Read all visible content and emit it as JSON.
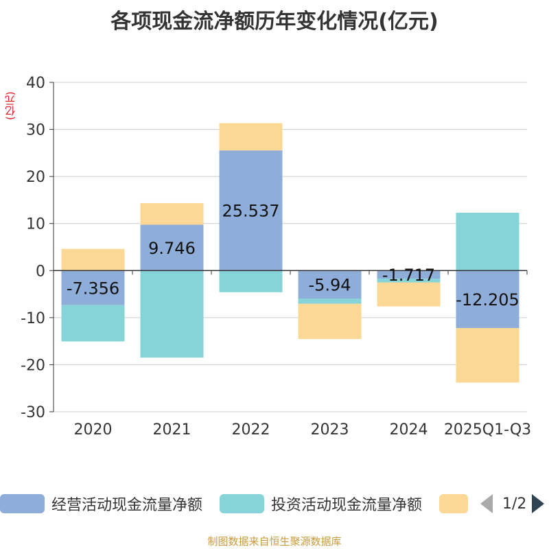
{
  "chart_data": {
    "type": "bar",
    "stacked": true,
    "title": "各项现金流净额历年变化情况(亿元)",
    "ylabel": "(亿元)",
    "xlabel": "",
    "categories": [
      "2020",
      "2021",
      "2022",
      "2023",
      "2024",
      "2025Q1-Q3"
    ],
    "ylim": [
      -30,
      40
    ],
    "yticks": [
      -30,
      -20,
      -10,
      0,
      10,
      20,
      30,
      40
    ],
    "grid": true,
    "series": [
      {
        "name": "经营活动现金流量净额",
        "color": "#8fadd9",
        "values": [
          -7.356,
          9.746,
          25.537,
          -5.94,
          -1.717,
          -12.205
        ],
        "labels": true
      },
      {
        "name": "投资活动现金流量净额",
        "color": "#87d4d8",
        "values": [
          -7.7,
          -18.5,
          -4.6,
          -1.1,
          -0.8,
          12.3
        ],
        "labels": false
      },
      {
        "name": "",
        "color": "#fcd897",
        "values": [
          4.6,
          4.6,
          5.8,
          -7.5,
          -5.1,
          -11.6
        ],
        "labels": false
      }
    ],
    "data_labels": [
      "-7.356",
      "9.746",
      "25.537",
      "-5.94",
      "-1.717",
      "-12.205"
    ]
  },
  "legend": {
    "items": [
      {
        "label": "经营活动现金流量净额",
        "color": "#8fadd9"
      },
      {
        "label": "投资活动现金流量净额",
        "color": "#87d4d8"
      },
      {
        "label": "",
        "color": "#fcd897"
      }
    ],
    "page": "1/2"
  },
  "source": "制图数据来自恒生聚源数据库"
}
